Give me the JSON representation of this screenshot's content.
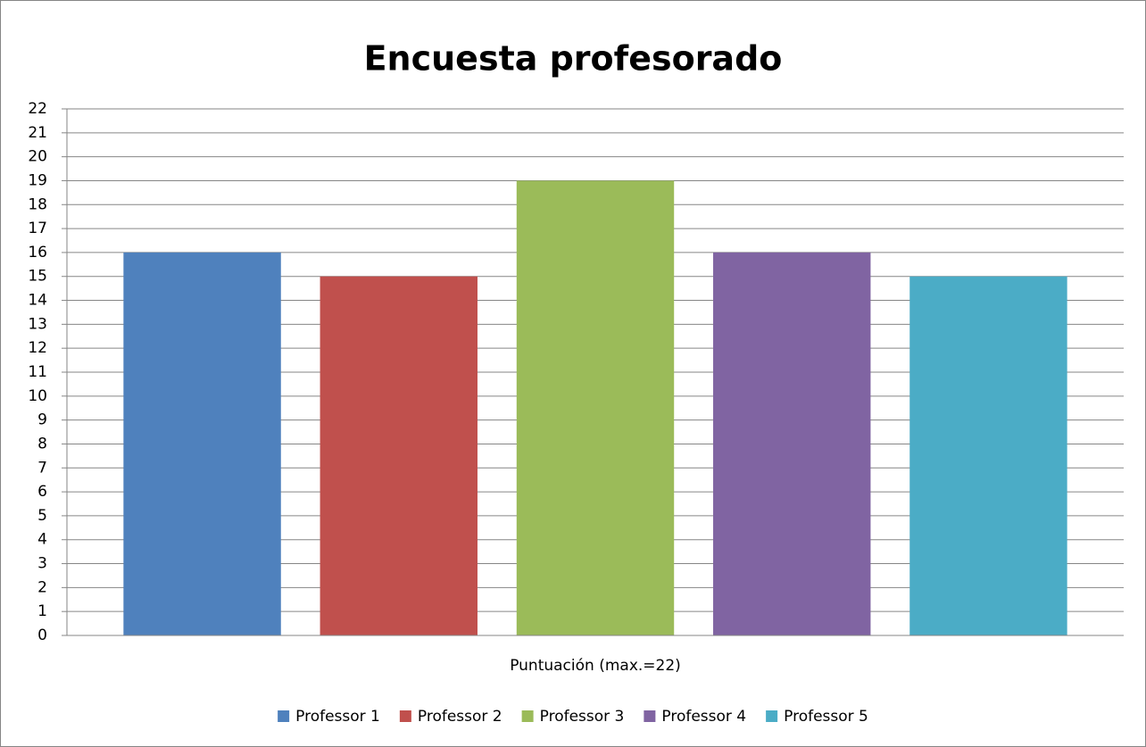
{
  "chart_data": {
    "type": "bar",
    "title": "Encuesta profesorado",
    "categories": [
      "Puntuación (max.=22)"
    ],
    "series": [
      {
        "name": "Professor 1",
        "color": "#4f81bd",
        "values": [
          16
        ]
      },
      {
        "name": "Professor 2",
        "color": "#c0504d",
        "values": [
          15
        ]
      },
      {
        "name": "Professor 3",
        "color": "#9bbb59",
        "values": [
          19
        ]
      },
      {
        "name": "Professor 4",
        "color": "#8064a2",
        "values": [
          16
        ]
      },
      {
        "name": "Professor 5",
        "color": "#4bacc6",
        "values": [
          15
        ]
      }
    ],
    "ylim": [
      0,
      22
    ],
    "yticks": [
      0,
      1,
      2,
      3,
      4,
      5,
      6,
      7,
      8,
      9,
      10,
      11,
      12,
      13,
      14,
      15,
      16,
      17,
      18,
      19,
      20,
      21,
      22
    ],
    "grid": true,
    "legend": "bottom"
  }
}
